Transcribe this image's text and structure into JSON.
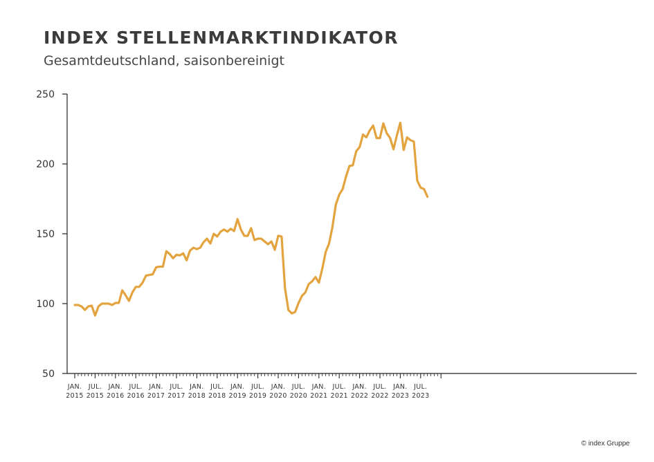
{
  "header": {
    "title": "INDEX STELLENMARKTINDIKATOR",
    "subtitle": "Gesamtdeutschland, saisonbereinigt"
  },
  "footer": {
    "copyright": "© index Gruppe"
  },
  "chart_data": {
    "type": "line",
    "title": "INDEX STELLENMARKTINDIKATOR",
    "subtitle": "Gesamtdeutschland, saisonbereinigt",
    "xlabel": "",
    "ylabel": "",
    "ylim": [
      50,
      250
    ],
    "yticks": [
      50,
      100,
      150,
      200,
      250
    ],
    "grid": false,
    "legend": "none",
    "line_color": "#E3A33E",
    "x_start": "2015-01",
    "x_end": "2023-10",
    "x_ticks": [
      {
        "line1": "JAN.",
        "line2": "2015"
      },
      {
        "line1": "JUL.",
        "line2": "2015"
      },
      {
        "line1": "JAN.",
        "line2": "2016"
      },
      {
        "line1": "JUL.",
        "line2": "2016"
      },
      {
        "line1": "JAN.",
        "line2": "2017"
      },
      {
        "line1": "JUL.",
        "line2": "2017"
      },
      {
        "line1": "JAN.",
        "line2": "2018"
      },
      {
        "line1": "JUL.",
        "line2": "2018"
      },
      {
        "line1": "JAN.",
        "line2": "2019"
      },
      {
        "line1": "JUL.",
        "line2": "2019"
      },
      {
        "line1": "JAN.",
        "line2": "2020"
      },
      {
        "line1": "JUL.",
        "line2": "2020"
      },
      {
        "line1": "JAN.",
        "line2": "2021"
      },
      {
        "line1": "JUL.",
        "line2": "2021"
      },
      {
        "line1": "JAN.",
        "line2": "2022"
      },
      {
        "line1": "JUL.",
        "line2": "2022"
      },
      {
        "line1": "JAN.",
        "line2": "2023"
      },
      {
        "line1": "JUL.",
        "line2": "2023"
      }
    ],
    "series": [
      {
        "x": [
          "2015-01",
          "2015-02",
          "2015-03",
          "2015-04",
          "2015-05",
          "2015-06",
          "2015-07",
          "2015-08",
          "2015-09",
          "2015-10",
          "2015-11",
          "2015-12",
          "2016-01",
          "2016-02",
          "2016-03",
          "2016-04",
          "2016-05",
          "2016-06",
          "2016-07",
          "2016-08",
          "2016-09",
          "2016-10",
          "2016-11",
          "2016-12",
          "2017-01",
          "2017-02",
          "2017-03",
          "2017-04",
          "2017-05",
          "2017-06",
          "2017-07",
          "2017-08",
          "2017-09",
          "2017-10",
          "2017-11",
          "2017-12",
          "2018-01",
          "2018-02",
          "2018-03",
          "2018-04",
          "2018-05",
          "2018-06",
          "2018-07",
          "2018-08",
          "2018-09",
          "2018-10",
          "2018-11",
          "2018-12",
          "2019-01",
          "2019-02",
          "2019-03",
          "2019-04",
          "2019-05",
          "2019-06",
          "2019-07",
          "2019-08",
          "2019-09",
          "2019-10",
          "2019-11",
          "2019-12",
          "2020-01",
          "2020-02",
          "2020-03",
          "2020-04",
          "2020-05",
          "2020-06",
          "2020-07",
          "2020-08",
          "2020-09",
          "2020-10",
          "2020-11",
          "2020-12",
          "2021-01",
          "2021-02",
          "2021-03",
          "2021-04",
          "2021-05",
          "2021-06",
          "2021-07",
          "2021-08",
          "2021-09",
          "2021-10",
          "2021-11",
          "2021-12",
          "2022-01",
          "2022-02",
          "2022-03",
          "2022-04",
          "2022-05",
          "2022-06",
          "2022-07",
          "2022-08",
          "2022-09",
          "2022-10",
          "2022-11",
          "2022-12",
          "2023-01",
          "2023-02",
          "2023-03",
          "2023-04",
          "2023-05",
          "2023-06",
          "2023-07",
          "2023-08",
          "2023-09"
        ],
        "values": [
          99,
          99,
          98,
          95.5,
          98,
          98.5,
          91.5,
          98,
          100,
          100,
          100,
          99,
          100.5,
          100.5,
          109.5,
          106,
          102,
          108,
          112,
          112,
          115,
          120,
          120.5,
          121,
          126,
          126.5,
          126.5,
          137.5,
          135.5,
          132.5,
          135,
          134.5,
          136,
          131,
          138,
          140,
          139,
          140,
          144,
          146.5,
          143,
          150,
          148,
          151.5,
          153,
          151.5,
          153.5,
          152,
          160.5,
          153,
          148.5,
          148.5,
          154,
          145.5,
          146.5,
          146.5,
          144.5,
          142.5,
          144.5,
          138.5,
          148.5,
          148,
          111,
          95.5,
          93,
          94,
          100.5,
          105.5,
          108,
          114,
          116,
          119,
          115,
          125,
          137,
          143,
          155,
          171,
          178,
          182,
          191,
          198.5,
          199,
          209,
          212,
          221,
          219,
          224,
          227.5,
          218.5,
          218.5,
          229,
          222,
          218.5,
          210.5,
          220.5,
          229.5,
          210,
          219,
          217,
          216,
          188,
          183,
          182,
          176.5
        ]
      }
    ]
  }
}
